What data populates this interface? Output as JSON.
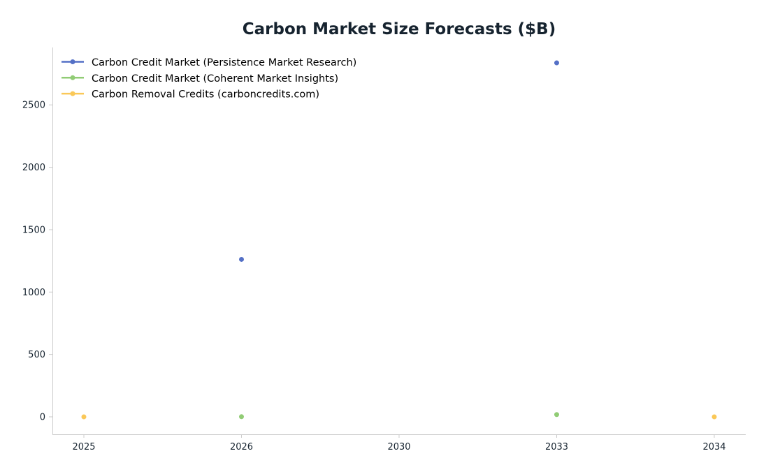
{
  "chart_data": {
    "type": "line",
    "title": "Carbon Market Size Forecasts ($B)",
    "xlabel": "",
    "ylabel": "",
    "categories": [
      "2025",
      "2026",
      "2030",
      "2033",
      "2034"
    ],
    "ylim": [
      -140,
      2960
    ],
    "yticks": [
      0,
      500,
      1000,
      1500,
      2000,
      2500
    ],
    "grid": false,
    "legend_position": "top-left",
    "series": [
      {
        "name": "Carbon Credit Market (Persistence Market Research)",
        "color": "#5470c6",
        "values": [
          null,
          1262,
          null,
          2837,
          null
        ]
      },
      {
        "name": "Carbon Credit Market (Coherent Market Insights)",
        "color": "#91cc75",
        "values": [
          null,
          1,
          null,
          18,
          null
        ]
      },
      {
        "name": "Carbon Removal Credits (carboncredits.com)",
        "color": "#fac858",
        "values": [
          0,
          null,
          null,
          null,
          0
        ]
      }
    ]
  }
}
